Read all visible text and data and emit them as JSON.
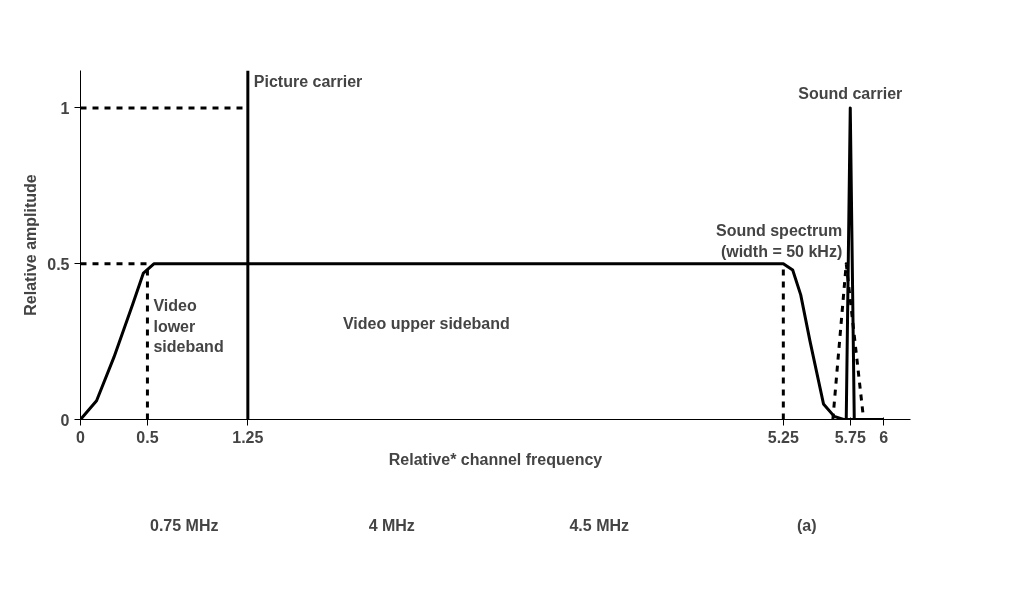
{
  "chart_data": {
    "type": "line",
    "xlabel": "Relative* channel frequency",
    "ylabel": "Relative amplitude",
    "xlim": [
      0,
      6.2
    ],
    "ylim": [
      0,
      1.12
    ],
    "xticks": [
      0,
      0.5,
      1.25,
      5.25,
      5.75,
      6
    ],
    "yticks": [
      0,
      0.5,
      1
    ],
    "series": [
      {
        "color": "#000000",
        "line_style": "solid",
        "x": [
          0,
          0.12,
          0.25,
          0.39,
          0.47,
          0.55,
          0.7,
          5.25,
          5.32,
          5.38,
          5.45,
          5.55,
          5.63,
          5.7,
          5.9,
          6
        ],
        "values": [
          0,
          0.06,
          0.2,
          0.37,
          0.47,
          0.5,
          0.5,
          0.5,
          0.48,
          0.4,
          0.25,
          0.05,
          0.01,
          0,
          0,
          0
        ]
      },
      {
        "color": "#000000",
        "line_style": "solid",
        "x": [
          5.72,
          5.75,
          5.78
        ],
        "values": [
          0,
          1,
          0
        ]
      },
      {
        "color": "#000000",
        "line_style": "dashed",
        "x": [
          5.62,
          5.72,
          5.85
        ],
        "values": [
          0,
          0.5,
          0
        ]
      },
      {
        "color": "#000000",
        "line_style": "dashed",
        "x": [
          0,
          1.25
        ],
        "values": [
          1,
          1
        ]
      },
      {
        "color": "#000000",
        "line_style": "dashed",
        "x": [
          0,
          0.5
        ],
        "values": [
          0.5,
          0.5
        ]
      },
      {
        "color": "#000000",
        "line_style": "dashed",
        "x": [
          0.5,
          0.5
        ],
        "values": [
          0,
          0.5
        ]
      },
      {
        "color": "#000000",
        "line_style": "dashed",
        "x": [
          5.25,
          5.25
        ],
        "values": [
          0,
          0.5
        ]
      }
    ],
    "ref_lines": [
      {
        "axis": "x",
        "value": 1.25,
        "label": "Picture carrier",
        "line_style": "solid",
        "color": "#000000"
      }
    ],
    "annotations": [
      {
        "text": "Sound carrier",
        "x": 5.75,
        "y": 1
      },
      {
        "text": "Sound spectrum\n(width = 50 kHz)",
        "x": 5.72,
        "y": 0.5
      },
      {
        "text": "Video\nlower\nsideband",
        "x": 0.5,
        "y": 0.3
      },
      "Video upper sideband",
      "0.75 MHz",
      "4 MHz",
      "4.5 MHz",
      "(a)"
    ]
  }
}
